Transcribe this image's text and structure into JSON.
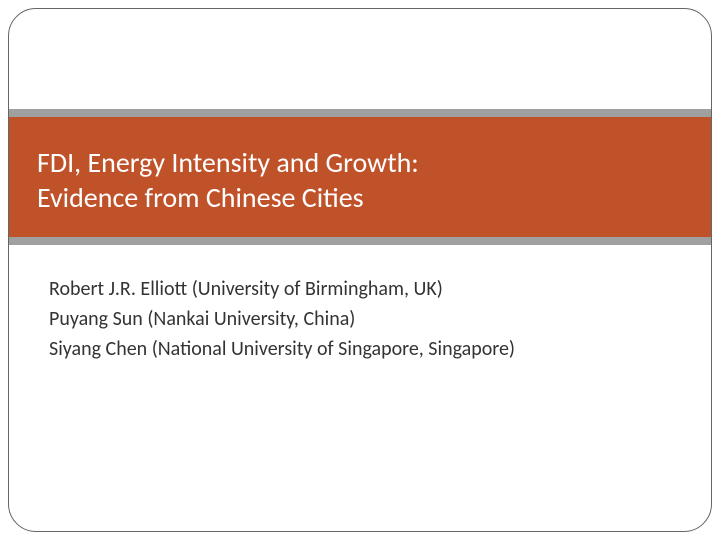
{
  "slide": {
    "title_line1": "FDI, Energy Intensity and Growth:",
    "title_line2": "Evidence from Chinese Cities",
    "authors": [
      "Robert J.R. Elliott (University of Birmingham, UK)",
      "Puyang Sun (Nankai University, China)",
      "Siyang Chen (National University of Singapore, Singapore)"
    ]
  },
  "style": {
    "band_color": "#c0522a",
    "band_border_color": "#a0a0a0",
    "title_color": "#ffffff",
    "title_fontsize": 28,
    "title_fontweight": 300,
    "author_color": "#333333",
    "author_fontsize": 20,
    "frame_border_color": "#666666",
    "frame_border_radius": 28,
    "background_color": "#ffffff"
  }
}
